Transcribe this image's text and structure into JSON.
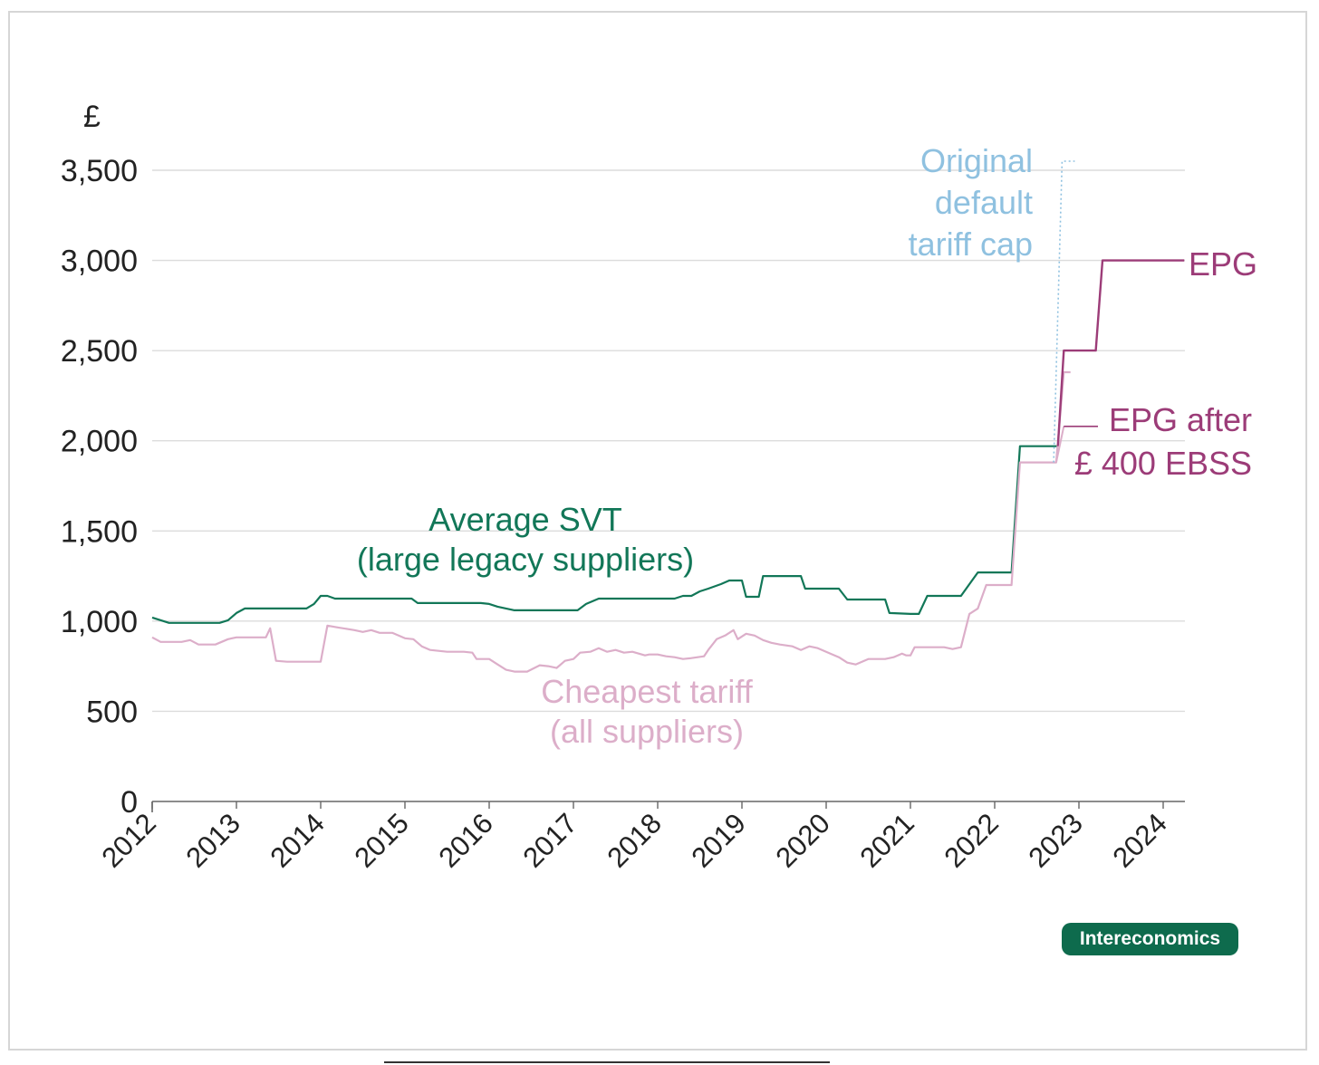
{
  "branding": {
    "badge": "Intereconomics"
  },
  "colors": {
    "svt": "#127758",
    "cheapest": "#dcaec9",
    "epg": "#9c3c78",
    "original_cap": "#8fc1e0",
    "grid": "#dcdcdc",
    "axis": "#666666",
    "text": "#222222"
  },
  "chart_data": {
    "type": "line",
    "ylabel": "£",
    "ylim": [
      0,
      3500
    ],
    "yticks": [
      0,
      500,
      1000,
      1500,
      2000,
      2500,
      3000,
      3500
    ],
    "ytick_labels": [
      "0",
      "500",
      "1,000",
      "1,500",
      "2,000",
      "2,500",
      "3,000",
      "3,500"
    ],
    "xlim": [
      2012,
      2024.25
    ],
    "xticks": [
      2012,
      2013,
      2014,
      2015,
      2016,
      2017,
      2018,
      2019,
      2020,
      2021,
      2022,
      2023,
      2024
    ],
    "xtick_labels": [
      "2012",
      "2013",
      "2014",
      "2015",
      "2016",
      "2017",
      "2018",
      "2019",
      "2020",
      "2021",
      "2022",
      "2023",
      "2024"
    ],
    "grid": true,
    "series": [
      {
        "key": "svt",
        "name": "Average SVT (large legacy suppliers)",
        "label_lines": [
          "Average SVT",
          "(large legacy suppliers)"
        ],
        "points": [
          [
            2012.0,
            1020
          ],
          [
            2012.2,
            990
          ],
          [
            2012.4,
            990
          ],
          [
            2012.6,
            990
          ],
          [
            2012.8,
            990
          ],
          [
            2012.9,
            1005
          ],
          [
            2013.0,
            1045
          ],
          [
            2013.1,
            1070
          ],
          [
            2013.5,
            1070
          ],
          [
            2013.83,
            1070
          ],
          [
            2013.92,
            1095
          ],
          [
            2014.0,
            1140
          ],
          [
            2014.08,
            1140
          ],
          [
            2014.17,
            1125
          ],
          [
            2014.5,
            1125
          ],
          [
            2014.85,
            1125
          ],
          [
            2015.0,
            1125
          ],
          [
            2015.08,
            1125
          ],
          [
            2015.15,
            1100
          ],
          [
            2015.5,
            1100
          ],
          [
            2015.9,
            1100
          ],
          [
            2016.0,
            1095
          ],
          [
            2016.1,
            1080
          ],
          [
            2016.3,
            1060
          ],
          [
            2016.5,
            1060
          ],
          [
            2016.8,
            1060
          ],
          [
            2017.05,
            1060
          ],
          [
            2017.15,
            1095
          ],
          [
            2017.3,
            1125
          ],
          [
            2017.6,
            1125
          ],
          [
            2018.0,
            1125
          ],
          [
            2018.2,
            1125
          ],
          [
            2018.3,
            1140
          ],
          [
            2018.4,
            1140
          ],
          [
            2018.5,
            1165
          ],
          [
            2018.6,
            1180
          ],
          [
            2018.75,
            1205
          ],
          [
            2018.85,
            1225
          ],
          [
            2018.95,
            1225
          ],
          [
            2019.0,
            1225
          ],
          [
            2019.05,
            1135
          ],
          [
            2019.2,
            1135
          ],
          [
            2019.25,
            1250
          ],
          [
            2019.45,
            1250
          ],
          [
            2019.7,
            1250
          ],
          [
            2019.75,
            1180
          ],
          [
            2019.9,
            1180
          ],
          [
            2020.15,
            1180
          ],
          [
            2020.25,
            1120
          ],
          [
            2020.5,
            1120
          ],
          [
            2020.7,
            1120
          ],
          [
            2020.75,
            1045
          ],
          [
            2021.0,
            1040
          ],
          [
            2021.1,
            1040
          ],
          [
            2021.2,
            1140
          ],
          [
            2021.5,
            1140
          ],
          [
            2021.6,
            1140
          ],
          [
            2021.8,
            1270
          ],
          [
            2022.0,
            1270
          ],
          [
            2022.2,
            1270
          ],
          [
            2022.3,
            1970
          ],
          [
            2022.55,
            1970
          ],
          [
            2022.75,
            1970
          ]
        ]
      },
      {
        "key": "cheapest",
        "name": "Cheapest tariff (all suppliers)",
        "label_lines": [
          "Cheapest tariff",
          "(all suppliers)"
        ],
        "points": [
          [
            2012.0,
            910
          ],
          [
            2012.1,
            885
          ],
          [
            2012.35,
            885
          ],
          [
            2012.45,
            895
          ],
          [
            2012.55,
            870
          ],
          [
            2012.75,
            870
          ],
          [
            2012.9,
            900
          ],
          [
            2013.0,
            910
          ],
          [
            2013.35,
            910
          ],
          [
            2013.4,
            960
          ],
          [
            2013.47,
            780
          ],
          [
            2013.6,
            775
          ],
          [
            2013.9,
            775
          ],
          [
            2014.0,
            775
          ],
          [
            2014.08,
            975
          ],
          [
            2014.2,
            965
          ],
          [
            2014.4,
            950
          ],
          [
            2014.5,
            940
          ],
          [
            2014.6,
            950
          ],
          [
            2014.7,
            935
          ],
          [
            2014.85,
            935
          ],
          [
            2015.0,
            905
          ],
          [
            2015.1,
            900
          ],
          [
            2015.2,
            860
          ],
          [
            2015.3,
            840
          ],
          [
            2015.5,
            830
          ],
          [
            2015.7,
            830
          ],
          [
            2015.8,
            825
          ],
          [
            2015.85,
            790
          ],
          [
            2016.0,
            790
          ],
          [
            2016.1,
            760
          ],
          [
            2016.2,
            730
          ],
          [
            2016.3,
            720
          ],
          [
            2016.45,
            720
          ],
          [
            2016.6,
            755
          ],
          [
            2016.7,
            750
          ],
          [
            2016.8,
            740
          ],
          [
            2016.9,
            780
          ],
          [
            2017.0,
            790
          ],
          [
            2017.08,
            825
          ],
          [
            2017.2,
            830
          ],
          [
            2017.3,
            850
          ],
          [
            2017.4,
            830
          ],
          [
            2017.5,
            840
          ],
          [
            2017.6,
            825
          ],
          [
            2017.7,
            830
          ],
          [
            2017.85,
            810
          ],
          [
            2017.9,
            815
          ],
          [
            2018.0,
            815
          ],
          [
            2018.1,
            805
          ],
          [
            2018.2,
            800
          ],
          [
            2018.3,
            790
          ],
          [
            2018.4,
            795
          ],
          [
            2018.55,
            805
          ],
          [
            2018.6,
            840
          ],
          [
            2018.7,
            900
          ],
          [
            2018.8,
            920
          ],
          [
            2018.9,
            950
          ],
          [
            2018.95,
            900
          ],
          [
            2019.05,
            930
          ],
          [
            2019.15,
            920
          ],
          [
            2019.25,
            895
          ],
          [
            2019.35,
            880
          ],
          [
            2019.45,
            870
          ],
          [
            2019.6,
            860
          ],
          [
            2019.7,
            840
          ],
          [
            2019.8,
            860
          ],
          [
            2019.9,
            850
          ],
          [
            2020.05,
            820
          ],
          [
            2020.15,
            800
          ],
          [
            2020.25,
            770
          ],
          [
            2020.35,
            760
          ],
          [
            2020.5,
            790
          ],
          [
            2020.7,
            790
          ],
          [
            2020.8,
            800
          ],
          [
            2020.9,
            820
          ],
          [
            2020.95,
            810
          ],
          [
            2021.0,
            810
          ],
          [
            2021.05,
            855
          ],
          [
            2021.2,
            855
          ],
          [
            2021.4,
            855
          ],
          [
            2021.5,
            845
          ],
          [
            2021.6,
            855
          ],
          [
            2021.7,
            1040
          ],
          [
            2021.8,
            1070
          ],
          [
            2021.9,
            1200
          ],
          [
            2022.0,
            1200
          ],
          [
            2022.2,
            1200
          ],
          [
            2022.3,
            1880
          ],
          [
            2022.55,
            1880
          ],
          [
            2022.73,
            1880
          ],
          [
            2022.82,
            2380
          ],
          [
            2022.9,
            2380
          ]
        ]
      },
      {
        "key": "epg",
        "name": "EPG",
        "label_lines": [
          "EPG"
        ],
        "points": [
          [
            2022.75,
            1970
          ],
          [
            2022.82,
            2500
          ],
          [
            2023.0,
            2500
          ],
          [
            2023.2,
            2500
          ],
          [
            2023.28,
            3000
          ],
          [
            2023.6,
            3000
          ],
          [
            2024.0,
            3000
          ],
          [
            2024.25,
            3000
          ]
        ]
      },
      {
        "key": "epg_after_ebss",
        "name": "EPG after £ 400 EBSS",
        "label_lines": [
          "EPG after",
          "£ 400 EBSS"
        ],
        "points": [
          [
            2022.73,
            1880
          ],
          [
            2022.82,
            2080
          ]
        ]
      },
      {
        "key": "original_cap",
        "name": "Original default tariff cap",
        "label_lines": [
          "Original",
          "default",
          "tariff cap"
        ],
        "points": [
          [
            2022.7,
            1880
          ],
          [
            2022.8,
            3550
          ],
          [
            2022.95,
            3550
          ]
        ]
      }
    ],
    "annotations": [
      {
        "key": "svt_label",
        "series": "svt",
        "lines": [
          "Average SVT",
          "(large legacy suppliers)"
        ],
        "at": [
          2016.45,
          1420
        ]
      },
      {
        "key": "cheapest_label",
        "series": "cheapest",
        "lines": [
          "Cheapest tariff",
          "(all suppliers)"
        ],
        "at": [
          2016.85,
          520
        ]
      },
      {
        "key": "cap_label",
        "series": "original_cap",
        "lines": [
          "Original",
          "default",
          "tariff cap"
        ],
        "at": [
          2021.6,
          3370
        ]
      },
      {
        "key": "epg_label",
        "series": "epg",
        "lines": [
          "EPG"
        ],
        "at": [
          2024.4,
          2950
        ]
      },
      {
        "key": "ebss_label",
        "series": "epg_after_ebss",
        "lines": [
          "EPG after",
          "£ 400 EBSS"
        ],
        "at": [
          2023.35,
          2070
        ]
      }
    ]
  }
}
